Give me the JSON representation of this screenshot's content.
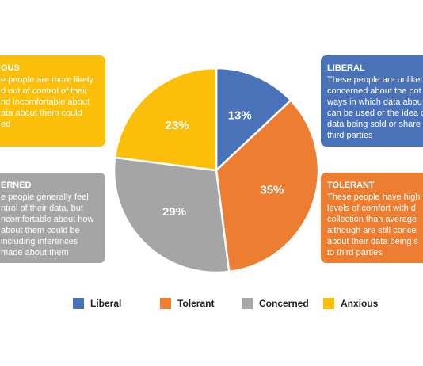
{
  "chart_data": {
    "type": "pie",
    "categories": [
      "Liberal",
      "Tolerant",
      "Concerned",
      "Anxious"
    ],
    "values": [
      13,
      35,
      29,
      23
    ],
    "value_labels": [
      "13%",
      "35%",
      "29%",
      "23%"
    ],
    "colors": [
      "#4a72b8",
      "#ed7d31",
      "#a5a5a5",
      "#fbbf0a"
    ],
    "callouts": [
      {
        "title": "LIBERAL",
        "lines": [
          "These people are unlikel",
          "concerned about the pot",
          "ways in which data abou",
          "can be used or the idea o",
          "data being sold or share",
          "third parties"
        ]
      },
      {
        "title": "TOLERANT",
        "lines": [
          "These people have high",
          "levels of comfort with d",
          "collection than average",
          "although are still conce",
          "about their data being s",
          "to third parties"
        ]
      },
      {
        "title": "ERNED",
        "lines": [
          "e people generally feel",
          "ntrol of their data, but",
          "ncomfortable about how",
          "about them could be",
          "including inferences",
          "made about them"
        ]
      },
      {
        "title": "OUS",
        "lines": [
          "e people are more likely",
          "d out of control of their",
          "nd incomfortable about",
          "ata about them could",
          "ed"
        ]
      }
    ]
  }
}
